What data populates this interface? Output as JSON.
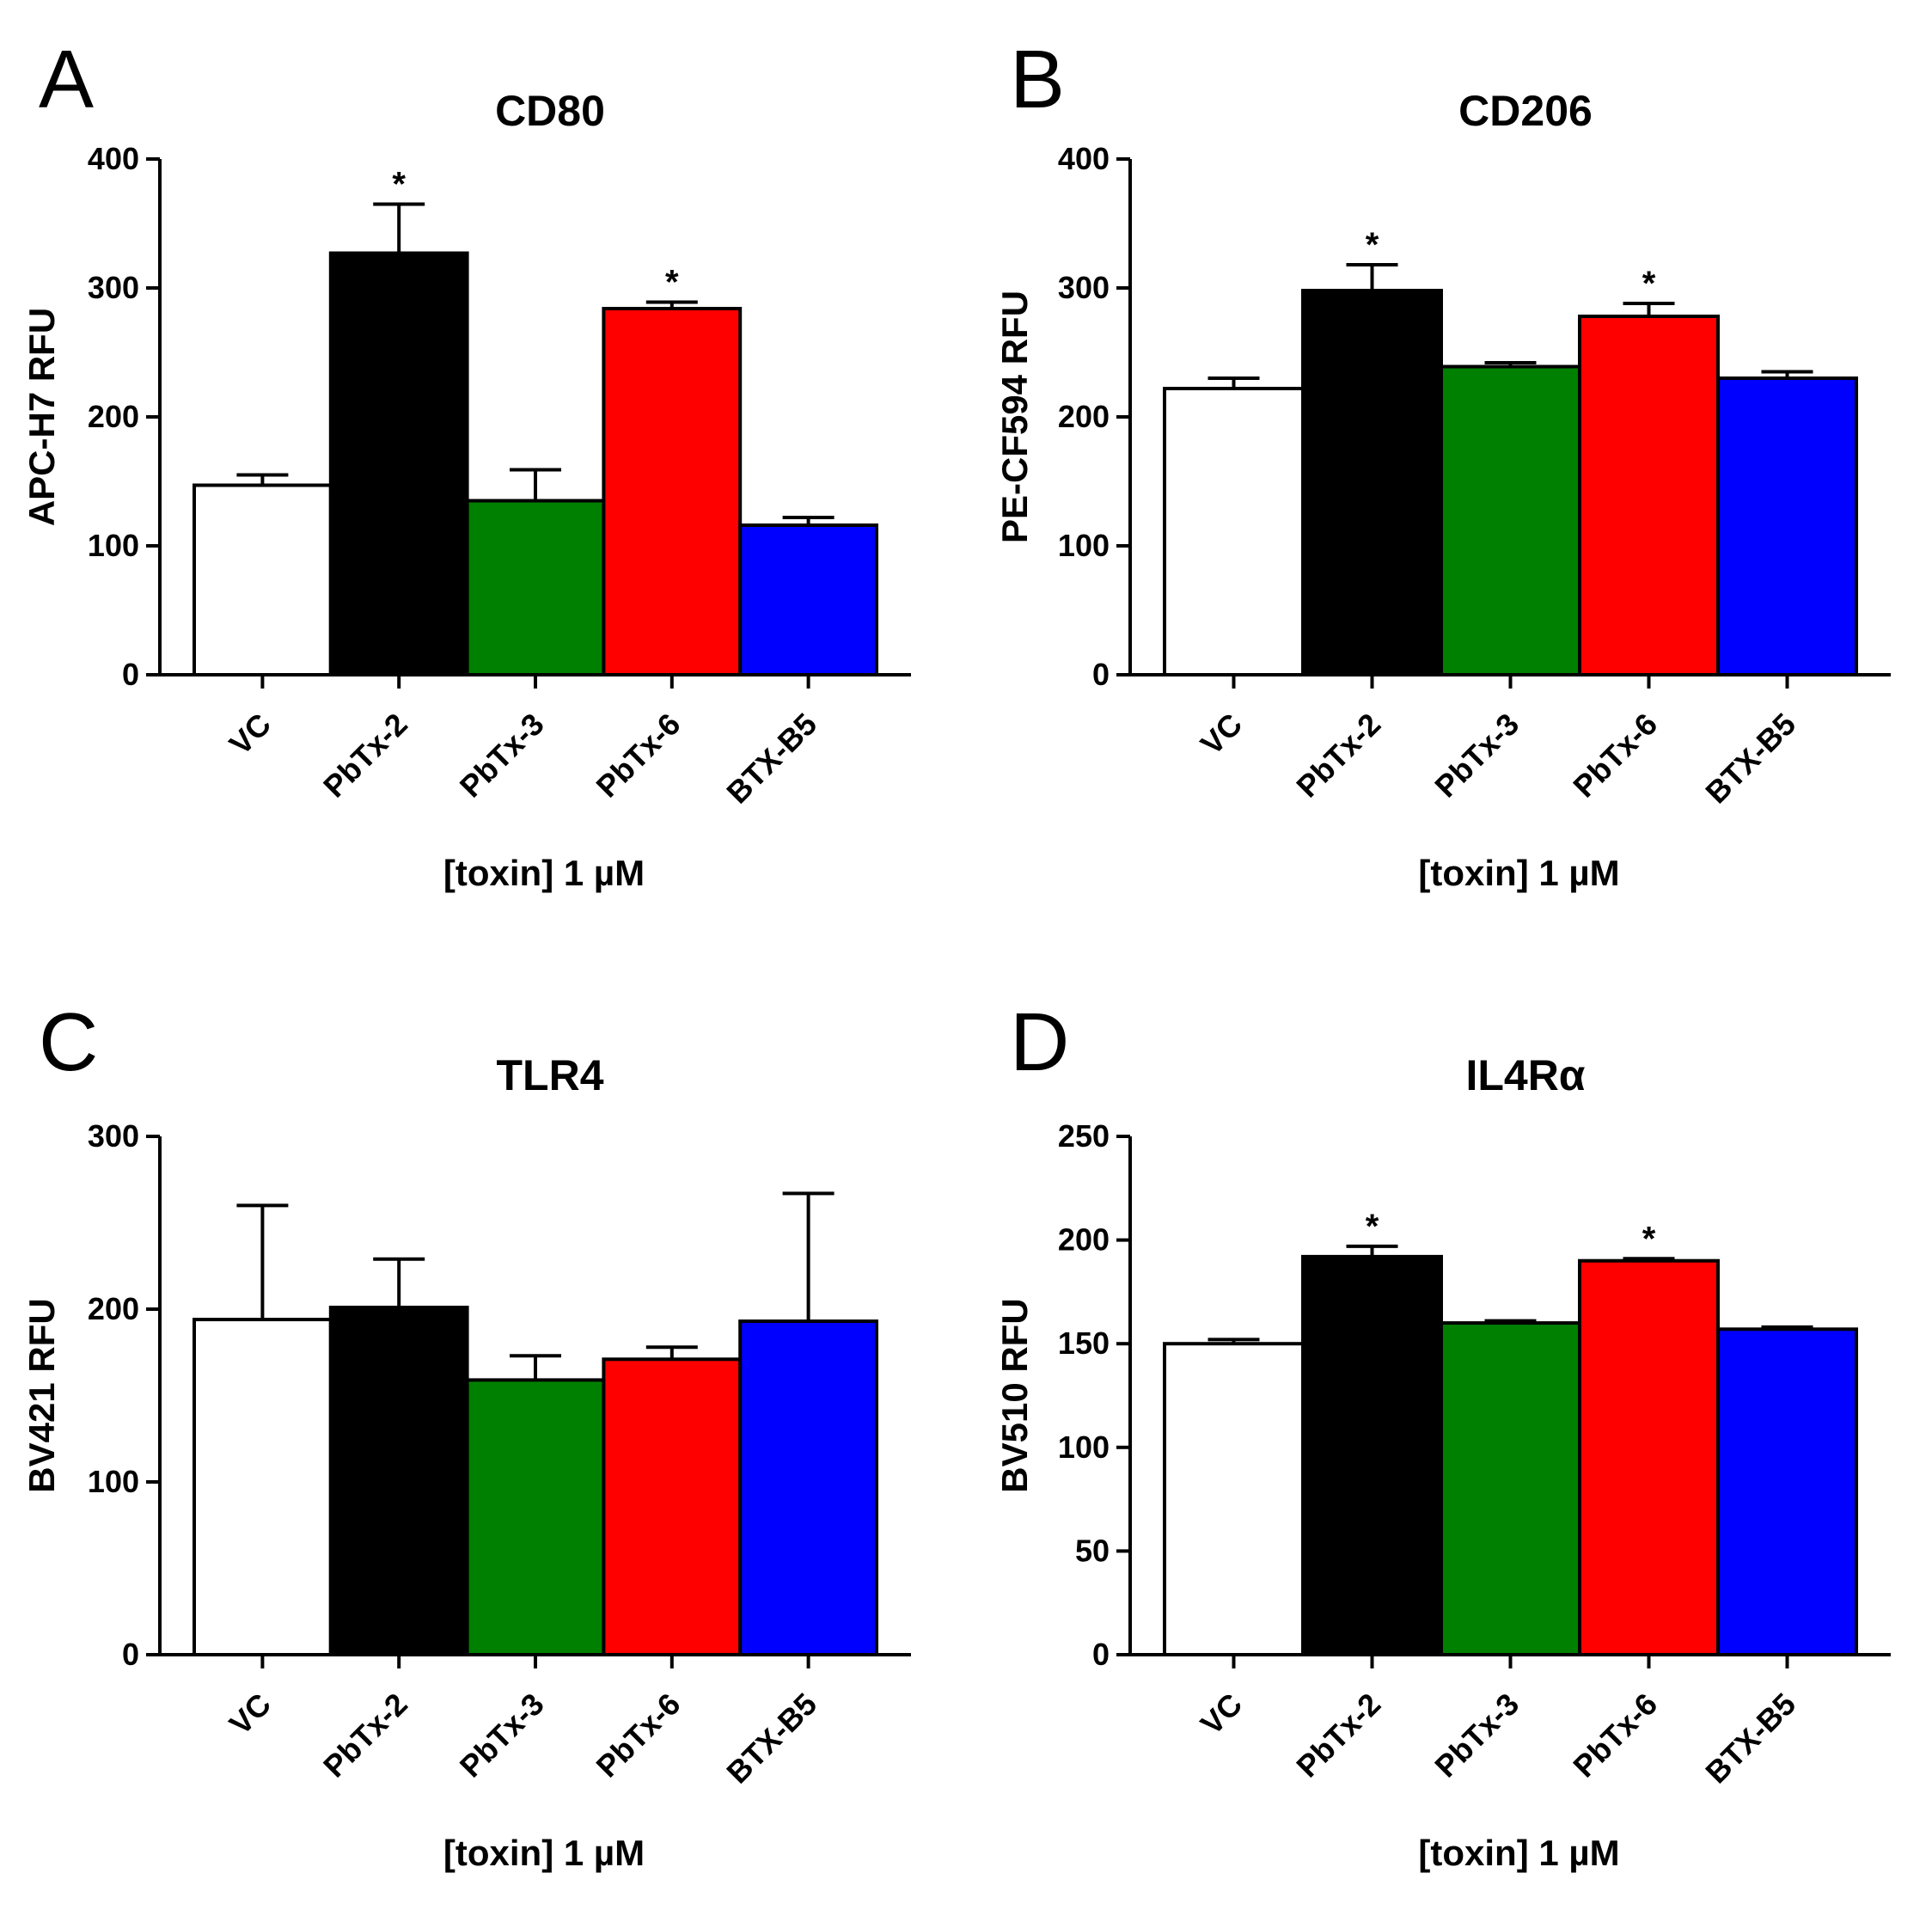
{
  "colors": {
    "VC": "#ffffff",
    "PbTx-2": "#000000",
    "PbTx-3": "#008000",
    "PbTx-6": "#ff0000",
    "BTX-B5": "#0000ff"
  },
  "chart_data": [
    {
      "type": "bar",
      "panel": "A",
      "title": "CD80",
      "xlabel": "[toxin] 1 µM",
      "ylabel": "APC-H7 RFU",
      "categories": [
        "VC",
        "PbTx-2",
        "PbTx-3",
        "PbTx-6",
        "BTX-B5"
      ],
      "values": [
        147,
        327,
        135,
        284,
        116
      ],
      "errors": [
        8,
        38,
        24,
        5,
        6
      ],
      "significant": [
        "",
        "*",
        "",
        "*",
        ""
      ],
      "ylim": [
        0,
        400
      ],
      "yticks": [
        "0",
        "100",
        "200",
        "300",
        "400"
      ]
    },
    {
      "type": "bar",
      "panel": "B",
      "title": "CD206",
      "xlabel": "[toxin] 1 µM",
      "ylabel": "PE-CF594 RFU",
      "categories": [
        "VC",
        "PbTx-2",
        "PbTx-3",
        "PbTx-6",
        "BTX-B5"
      ],
      "values": [
        222,
        298,
        239,
        278,
        230
      ],
      "errors": [
        8,
        20,
        3,
        10,
        5
      ],
      "significant": [
        "",
        "*",
        "",
        "*",
        ""
      ],
      "ylim": [
        0,
        400
      ],
      "yticks": [
        "0",
        "100",
        "200",
        "300",
        "400"
      ]
    },
    {
      "type": "bar",
      "panel": "C",
      "title": "TLR4",
      "xlabel": "[toxin] 1 µM",
      "ylabel": "BV421 RFU",
      "categories": [
        "VC",
        "PbTx-2",
        "PbTx-3",
        "PbTx-6",
        "BTX-B5"
      ],
      "values": [
        194,
        201,
        159,
        171,
        193
      ],
      "errors": [
        66,
        28,
        14,
        7,
        74
      ],
      "significant": [
        "",
        "",
        "",
        "",
        ""
      ],
      "ylim": [
        0,
        300
      ],
      "yticks": [
        "0",
        "100",
        "200",
        "300"
      ]
    },
    {
      "type": "bar",
      "panel": "D",
      "title": "IL4Rα",
      "xlabel": "[toxin] 1 µM",
      "ylabel": "BV510 RFU",
      "categories": [
        "VC",
        "PbTx-2",
        "PbTx-3",
        "PbTx-6",
        "BTX-B5"
      ],
      "values": [
        150,
        192,
        160,
        190,
        157
      ],
      "errors": [
        2,
        5,
        1,
        1,
        1
      ],
      "significant": [
        "",
        "*",
        "",
        "*",
        ""
      ],
      "ylim": [
        0,
        250
      ],
      "yticks": [
        "0",
        "50",
        "100",
        "150",
        "200",
        "250"
      ]
    }
  ]
}
